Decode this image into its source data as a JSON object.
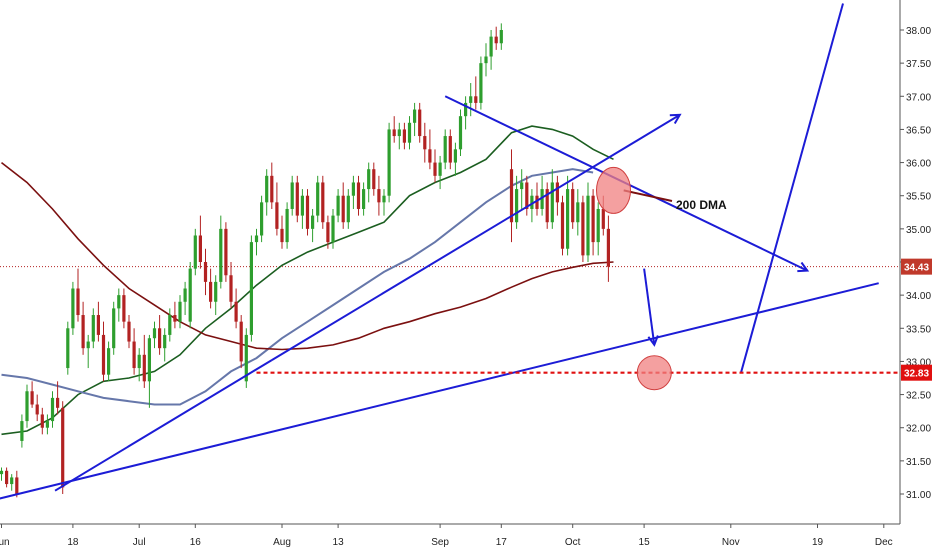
{
  "chart_data": {
    "type": "candlestick",
    "price_axis": {
      "ylim": [
        30.75,
        38.22
      ],
      "ticks": [
        "31.00",
        "31.50",
        "32.00",
        "32.50",
        "33.00",
        "33.50",
        "34.00",
        "34.50",
        "35.00",
        "35.50",
        "36.00",
        "36.50",
        "37.00",
        "37.50",
        "38.00"
      ]
    },
    "time_axis": {
      "ticks": [
        {
          "label": "Jun",
          "t": 0
        },
        {
          "label": "18",
          "t": 14
        },
        {
          "label": "Jul",
          "t": 27
        },
        {
          "label": "16",
          "t": 38
        },
        {
          "label": "Aug",
          "t": 55
        },
        {
          "label": "13",
          "t": 66
        },
        {
          "label": "Sep",
          "t": 86
        },
        {
          "label": "17",
          "t": 98
        },
        {
          "label": "Oct",
          "t": 112
        },
        {
          "label": "15",
          "t": 126
        },
        {
          "label": "Nov",
          "t": 143
        },
        {
          "label": "19",
          "t": 160
        },
        {
          "label": "Dec",
          "t": 173
        }
      ]
    },
    "colors": {
      "up": "#2e9e2e",
      "down": "#b22222",
      "ma_fast": "#1b5e20",
      "ma_mid": "#6677aa",
      "ma_200": "#7b1010",
      "trend": "#1c1cd6",
      "support": "#e01010",
      "highlight": "#f08080"
    },
    "candles": [
      [
        0,
        31.3,
        31.4,
        31.2,
        31.35
      ],
      [
        1,
        31.35,
        31.4,
        31.1,
        31.15
      ],
      [
        2,
        31.15,
        31.3,
        31.05,
        31.25
      ],
      [
        3,
        31.25,
        31.35,
        30.95,
        31.0
      ],
      [
        4,
        31.8,
        32.2,
        31.7,
        32.1
      ],
      [
        5,
        32.1,
        32.65,
        32.0,
        32.55
      ],
      [
        6,
        32.55,
        32.7,
        32.3,
        32.35
      ],
      [
        7,
        32.35,
        32.5,
        32.1,
        32.2
      ],
      [
        8,
        32.2,
        32.3,
        31.9,
        32.0
      ],
      [
        9,
        32.0,
        32.2,
        31.9,
        32.1
      ],
      [
        10,
        32.1,
        32.55,
        32.0,
        32.45
      ],
      [
        11,
        32.45,
        32.7,
        32.2,
        32.3
      ],
      [
        12,
        32.3,
        32.4,
        31.0,
        31.1
      ],
      [
        13,
        32.9,
        33.6,
        32.8,
        33.5
      ],
      [
        14,
        33.5,
        34.2,
        33.4,
        34.1
      ],
      [
        15,
        34.1,
        34.4,
        33.6,
        33.7
      ],
      [
        16,
        33.7,
        33.9,
        33.1,
        33.2
      ],
      [
        17,
        33.2,
        33.4,
        32.9,
        33.3
      ],
      [
        18,
        33.3,
        33.8,
        33.2,
        33.7
      ],
      [
        19,
        33.7,
        33.9,
        33.3,
        33.4
      ],
      [
        20,
        33.4,
        33.6,
        32.7,
        32.8
      ],
      [
        21,
        32.8,
        33.3,
        32.7,
        33.2
      ],
      [
        22,
        33.2,
        33.9,
        33.1,
        33.8
      ],
      [
        23,
        33.8,
        34.1,
        33.6,
        34.0
      ],
      [
        24,
        34.0,
        34.1,
        33.5,
        33.6
      ],
      [
        25,
        33.6,
        33.7,
        33.2,
        33.3
      ],
      [
        26,
        33.3,
        33.5,
        32.8,
        32.9
      ],
      [
        27,
        32.9,
        33.2,
        32.7,
        33.1
      ],
      [
        28,
        33.1,
        33.4,
        32.6,
        32.7
      ],
      [
        29,
        32.7,
        33.4,
        32.3,
        33.35
      ],
      [
        30,
        33.35,
        33.6,
        33.2,
        33.5
      ],
      [
        31,
        33.5,
        33.7,
        33.1,
        33.2
      ],
      [
        32,
        33.2,
        33.5,
        33.0,
        33.4
      ],
      [
        33,
        33.4,
        33.8,
        33.3,
        33.7
      ],
      [
        34,
        33.7,
        33.9,
        33.5,
        33.6
      ],
      [
        35,
        33.6,
        34.0,
        33.5,
        33.9
      ],
      [
        36,
        33.9,
        34.2,
        33.7,
        34.1
      ],
      [
        37,
        33.6,
        34.5,
        33.5,
        34.4
      ],
      [
        38,
        34.4,
        35.0,
        34.3,
        34.9
      ],
      [
        39,
        34.9,
        35.2,
        34.4,
        34.5
      ],
      [
        40,
        34.5,
        34.7,
        34.0,
        34.2
      ],
      [
        41,
        34.2,
        34.4,
        33.8,
        33.9
      ],
      [
        42,
        33.9,
        34.3,
        33.7,
        34.2
      ],
      [
        43,
        34.2,
        35.2,
        34.1,
        35.0
      ],
      [
        44,
        35.0,
        35.1,
        34.2,
        34.3
      ],
      [
        45,
        34.3,
        34.5,
        33.8,
        33.9
      ],
      [
        46,
        33.9,
        34.1,
        33.5,
        33.6
      ],
      [
        47,
        33.6,
        33.7,
        32.9,
        33.0
      ],
      [
        48,
        32.7,
        33.5,
        32.6,
        33.4
      ],
      [
        49,
        33.4,
        34.9,
        33.3,
        34.8
      ],
      [
        50,
        34.8,
        35.0,
        34.6,
        34.9
      ],
      [
        51,
        34.9,
        35.5,
        34.8,
        35.4
      ],
      [
        52,
        35.4,
        35.9,
        35.2,
        35.8
      ],
      [
        53,
        35.8,
        36.0,
        35.3,
        35.4
      ],
      [
        54,
        35.4,
        35.7,
        34.9,
        35.0
      ],
      [
        55,
        35.0,
        35.2,
        34.7,
        34.8
      ],
      [
        56,
        34.8,
        35.4,
        34.7,
        35.3
      ],
      [
        57,
        35.3,
        35.8,
        35.2,
        35.7
      ],
      [
        58,
        35.7,
        35.8,
        35.1,
        35.2
      ],
      [
        59,
        35.2,
        35.6,
        35.0,
        35.5
      ],
      [
        60,
        35.5,
        35.6,
        34.9,
        35.0
      ],
      [
        61,
        35.0,
        35.3,
        34.8,
        35.2
      ],
      [
        62,
        35.2,
        35.8,
        35.1,
        35.7
      ],
      [
        63,
        35.7,
        35.8,
        35.0,
        35.1
      ],
      [
        64,
        35.1,
        35.2,
        34.7,
        34.8
      ],
      [
        65,
        34.8,
        35.3,
        34.7,
        35.2
      ],
      [
        66,
        35.2,
        35.6,
        35.1,
        35.5
      ],
      [
        67,
        35.5,
        35.7,
        35.0,
        35.1
      ],
      [
        68,
        35.1,
        35.6,
        35.0,
        35.5
      ],
      [
        69,
        35.5,
        35.8,
        35.3,
        35.7
      ],
      [
        70,
        35.7,
        35.8,
        35.2,
        35.3
      ],
      [
        71,
        35.3,
        35.7,
        35.2,
        35.6
      ],
      [
        72,
        35.6,
        36.0,
        35.4,
        35.9
      ],
      [
        73,
        35.9,
        36.0,
        35.5,
        35.6
      ],
      [
        74,
        35.6,
        35.8,
        35.2,
        35.4
      ],
      [
        75,
        35.4,
        35.6,
        35.2,
        35.5
      ],
      [
        76,
        35.5,
        36.6,
        35.4,
        36.5
      ],
      [
        77,
        36.5,
        36.7,
        36.3,
        36.4
      ],
      [
        78,
        36.4,
        36.6,
        36.2,
        36.5
      ],
      [
        79,
        36.5,
        36.6,
        36.2,
        36.3
      ],
      [
        80,
        36.3,
        36.7,
        36.2,
        36.6
      ],
      [
        81,
        36.6,
        36.9,
        36.4,
        36.8
      ],
      [
        82,
        36.8,
        36.9,
        36.3,
        36.4
      ],
      [
        83,
        36.4,
        36.6,
        36.0,
        36.2
      ],
      [
        84,
        36.2,
        36.5,
        35.9,
        36.0
      ],
      [
        85,
        36.0,
        36.2,
        35.7,
        35.8
      ],
      [
        86,
        35.8,
        36.1,
        35.6,
        36.0
      ],
      [
        87,
        36.0,
        36.5,
        35.9,
        36.4
      ],
      [
        88,
        36.4,
        36.5,
        35.9,
        36.0
      ],
      [
        89,
        36.0,
        36.3,
        35.8,
        36.2
      ],
      [
        90,
        36.2,
        36.8,
        36.1,
        36.7
      ],
      [
        91,
        36.7,
        37.0,
        36.5,
        36.9
      ],
      [
        92,
        36.9,
        37.2,
        36.7,
        37.0
      ],
      [
        93,
        37.0,
        37.3,
        36.8,
        36.9
      ],
      [
        94,
        36.9,
        37.6,
        36.8,
        37.5
      ],
      [
        95,
        37.5,
        37.8,
        37.3,
        37.6
      ],
      [
        96,
        37.6,
        38.0,
        37.4,
        37.9
      ],
      [
        97,
        37.9,
        38.05,
        37.7,
        37.8
      ],
      [
        98,
        37.8,
        38.1,
        37.7,
        38.0
      ],
      [
        100,
        35.9,
        36.2,
        34.8,
        35.1
      ],
      [
        101,
        35.1,
        35.8,
        35.0,
        35.6
      ],
      [
        102,
        35.6,
        35.9,
        35.3,
        35.7
      ],
      [
        103,
        35.7,
        35.8,
        35.2,
        35.3
      ],
      [
        104,
        35.3,
        35.6,
        35.1,
        35.5
      ],
      [
        105,
        35.5,
        35.7,
        35.2,
        35.3
      ],
      [
        106,
        35.3,
        35.8,
        35.2,
        35.6
      ],
      [
        107,
        35.6,
        35.7,
        35.0,
        35.1
      ],
      [
        108,
        35.1,
        35.9,
        35.0,
        35.7
      ],
      [
        109,
        35.7,
        35.8,
        35.2,
        35.4
      ],
      [
        110,
        35.4,
        35.5,
        34.6,
        34.7
      ],
      [
        111,
        34.7,
        35.8,
        34.6,
        35.6
      ],
      [
        112,
        35.6,
        35.7,
        35.0,
        35.1
      ],
      [
        113,
        35.1,
        35.6,
        34.9,
        35.4
      ],
      [
        114,
        35.4,
        35.5,
        34.5,
        34.6
      ],
      [
        115,
        34.6,
        35.7,
        34.5,
        35.5
      ],
      [
        116,
        35.5,
        35.6,
        34.6,
        34.8
      ],
      [
        117,
        34.8,
        35.4,
        34.6,
        35.3
      ],
      [
        118,
        35.3,
        35.5,
        34.9,
        35.0
      ],
      [
        119,
        35.0,
        35.2,
        34.2,
        34.43
      ]
    ],
    "series": [
      {
        "role": "ma_fast",
        "points": [
          [
            0,
            31.9
          ],
          [
            5,
            31.95
          ],
          [
            10,
            32.15
          ],
          [
            15,
            32.5
          ],
          [
            20,
            32.7
          ],
          [
            25,
            32.75
          ],
          [
            30,
            32.85
          ],
          [
            35,
            33.1
          ],
          [
            40,
            33.5
          ],
          [
            45,
            33.8
          ],
          [
            50,
            34.15
          ],
          [
            55,
            34.45
          ],
          [
            60,
            34.65
          ],
          [
            65,
            34.8
          ],
          [
            70,
            34.95
          ],
          [
            75,
            35.1
          ],
          [
            80,
            35.5
          ],
          [
            85,
            35.7
          ],
          [
            90,
            35.85
          ],
          [
            95,
            36.05
          ],
          [
            100,
            36.45
          ],
          [
            104,
            36.55
          ],
          [
            108,
            36.5
          ],
          [
            112,
            36.4
          ],
          [
            116,
            36.2
          ],
          [
            120,
            36.05
          ]
        ]
      },
      {
        "role": "ma_mid",
        "points": [
          [
            0,
            32.8
          ],
          [
            5,
            32.75
          ],
          [
            10,
            32.65
          ],
          [
            15,
            32.55
          ],
          [
            20,
            32.45
          ],
          [
            25,
            32.4
          ],
          [
            30,
            32.35
          ],
          [
            35,
            32.35
          ],
          [
            40,
            32.55
          ],
          [
            45,
            32.85
          ],
          [
            50,
            33.05
          ],
          [
            55,
            33.35
          ],
          [
            60,
            33.6
          ],
          [
            65,
            33.85
          ],
          [
            70,
            34.1
          ],
          [
            75,
            34.35
          ],
          [
            80,
            34.55
          ],
          [
            85,
            34.8
          ],
          [
            90,
            35.1
          ],
          [
            95,
            35.4
          ],
          [
            100,
            35.65
          ],
          [
            104,
            35.8
          ],
          [
            108,
            35.85
          ],
          [
            112,
            35.9
          ],
          [
            116,
            35.85
          ]
        ]
      },
      {
        "role": "ma_200",
        "points": [
          [
            0,
            36.0
          ],
          [
            5,
            35.7
          ],
          [
            10,
            35.3
          ],
          [
            15,
            34.85
          ],
          [
            20,
            34.45
          ],
          [
            25,
            34.1
          ],
          [
            30,
            33.85
          ],
          [
            35,
            33.6
          ],
          [
            40,
            33.4
          ],
          [
            45,
            33.3
          ],
          [
            50,
            33.2
          ],
          [
            55,
            33.18
          ],
          [
            60,
            33.2
          ],
          [
            65,
            33.25
          ],
          [
            70,
            33.35
          ],
          [
            75,
            33.5
          ],
          [
            80,
            33.6
          ],
          [
            85,
            33.72
          ],
          [
            90,
            33.82
          ],
          [
            95,
            33.95
          ],
          [
            100,
            34.12
          ],
          [
            104,
            34.25
          ],
          [
            108,
            34.35
          ],
          [
            112,
            34.42
          ],
          [
            116,
            34.48
          ],
          [
            120,
            34.5
          ]
        ]
      }
    ],
    "current_price": "34.43",
    "support_level": "32.83",
    "annotations": [
      "200 DMA"
    ]
  }
}
